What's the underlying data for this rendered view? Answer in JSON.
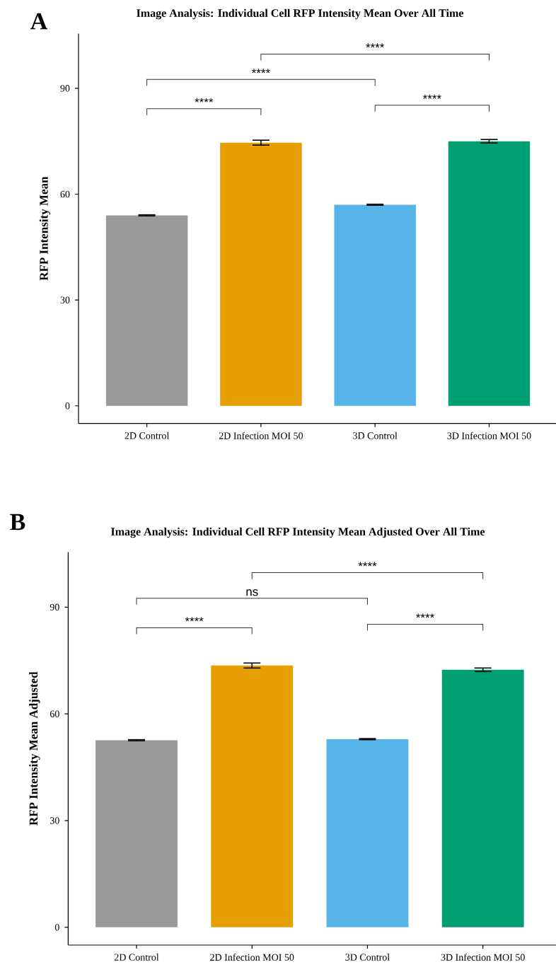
{
  "chart_data": [
    {
      "type": "bar",
      "title": "Image Analysis: Individual Cell RFP Intensity Mean Over All Time",
      "ylabel": "RFP Intensity Mean",
      "categories": [
        "2D Control",
        "2D Infection MOI 50",
        "3D Control",
        "3D Infection MOI 50"
      ],
      "values": [
        54.0,
        74.6,
        57.0,
        75.0
      ],
      "errors": [
        0.15,
        0.7,
        0.15,
        0.5
      ],
      "colors": [
        "#999999",
        "#e69f00",
        "#56b4e9",
        "#009e73"
      ],
      "ylim": [
        -5,
        105.5
      ],
      "yticks": [
        0,
        30,
        60,
        90
      ],
      "annotations": [
        "A",
        "****",
        "****",
        "****",
        "****"
      ]
    },
    {
      "type": "bar",
      "title": "Image Analysis: Individual Cell RFP Intensity Mean Adjusted Over All Time",
      "ylabel": "RFP Intensity Mean Adjusted",
      "categories": [
        "2D Control",
        "2D Infection MOI 50",
        "3D Control",
        "3D Infection MOI 50"
      ],
      "values": [
        52.6,
        73.6,
        52.9,
        72.4
      ],
      "errors": [
        0.15,
        0.7,
        0.15,
        0.5
      ],
      "colors": [
        "#999999",
        "#e69f00",
        "#56b4e9",
        "#009e73"
      ],
      "ylim": [
        -5,
        105.5
      ],
      "yticks": [
        0,
        30,
        60,
        90
      ],
      "annotations": [
        "B",
        "****",
        "ns",
        "****",
        "****"
      ]
    }
  ]
}
